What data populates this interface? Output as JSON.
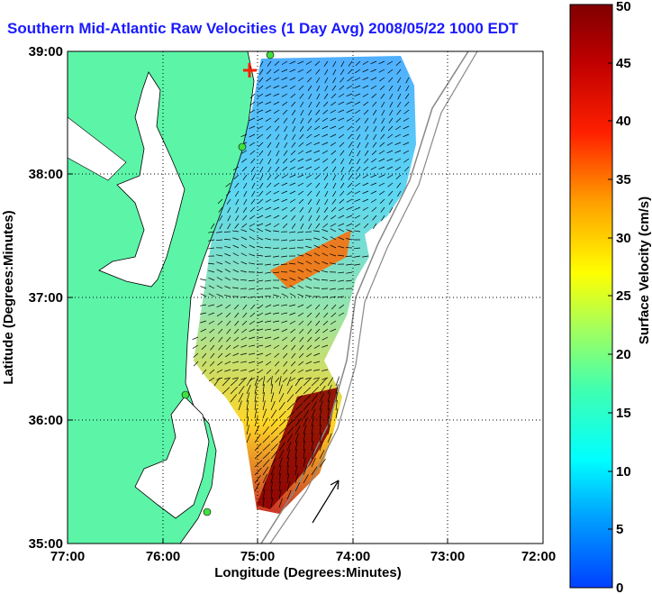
{
  "title": "Southern Mid-Atlantic Raw Velocities (1 Day Avg) 2008/05/22 1000 EDT",
  "xlabel": "Longitude (Degrees:Minutes)",
  "ylabel": "Latitude (Degrees:Minutes)",
  "colorbar_label": "Surface Velocity (cm/s)",
  "x_ticks": [
    "77:00",
    "76:00",
    "75:00",
    "74:00",
    "73:00",
    "72:00"
  ],
  "y_ticks": [
    "39:00",
    "38:00",
    "37:00",
    "36:00",
    "35:00"
  ],
  "colorbar_ticks": [
    "0",
    "5",
    "10",
    "15",
    "20",
    "25",
    "30",
    "35",
    "40",
    "45",
    "50"
  ],
  "colors": {
    "land": "#5cf5a8",
    "water": "#ffffff",
    "title": "#1a1aff"
  }
}
